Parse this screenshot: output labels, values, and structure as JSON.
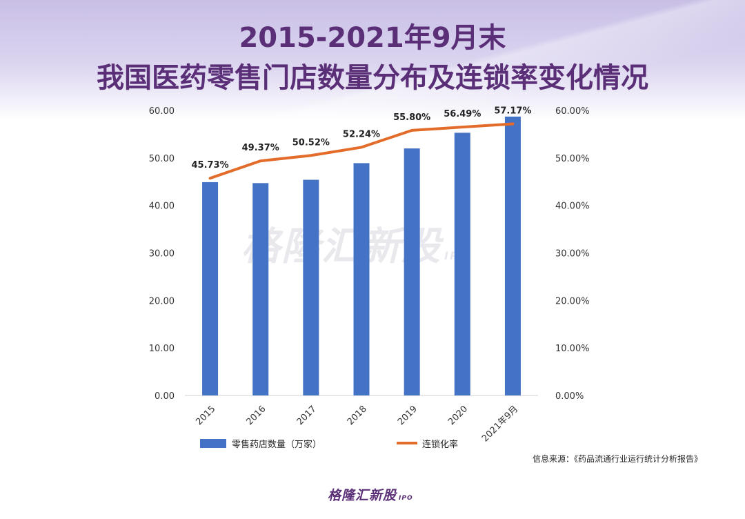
{
  "title": {
    "line1": "2015-2021年9月末",
    "line2": "我国医药零售门店数量分布及连锁率变化情况"
  },
  "source_note": "信息来源：《药品流通行业运行统计分析报告》",
  "watermark": {
    "text": "格隆汇新股",
    "sub": "IPO"
  },
  "logo": {
    "text": "格隆汇新股",
    "sub": "IPO"
  },
  "colors": {
    "bar": "#4472c4",
    "line": "#e36c2b",
    "title": "#5a2f77"
  },
  "chart_data": {
    "type": "bar",
    "categories": [
      "2015",
      "2016",
      "2017",
      "2018",
      "2019",
      "2020",
      "2021年9月"
    ],
    "series": [
      {
        "name": "零售药店数量（万家）",
        "type": "bar",
        "axis": "left",
        "values": [
          44.9,
          44.7,
          45.4,
          48.9,
          52.0,
          55.3,
          58.7
        ]
      },
      {
        "name": "连锁化率",
        "type": "line",
        "axis": "right",
        "values": [
          45.73,
          49.37,
          50.52,
          52.24,
          55.8,
          56.49,
          57.17
        ],
        "labels": [
          "45.73%",
          "49.37%",
          "50.52%",
          "52.24%",
          "55.80%",
          "56.49%",
          "57.17%"
        ]
      }
    ],
    "y_left": {
      "min": 0,
      "max": 60,
      "ticks": [
        "0.00",
        "10.00",
        "20.00",
        "30.00",
        "40.00",
        "50.00",
        "60.00"
      ]
    },
    "y_right": {
      "min": 0,
      "max": 60,
      "ticks": [
        "0.00%",
        "10.00%",
        "20.00%",
        "30.00%",
        "40.00%",
        "50.00%",
        "60.00%"
      ]
    },
    "grid": false,
    "legend": "bottom"
  }
}
